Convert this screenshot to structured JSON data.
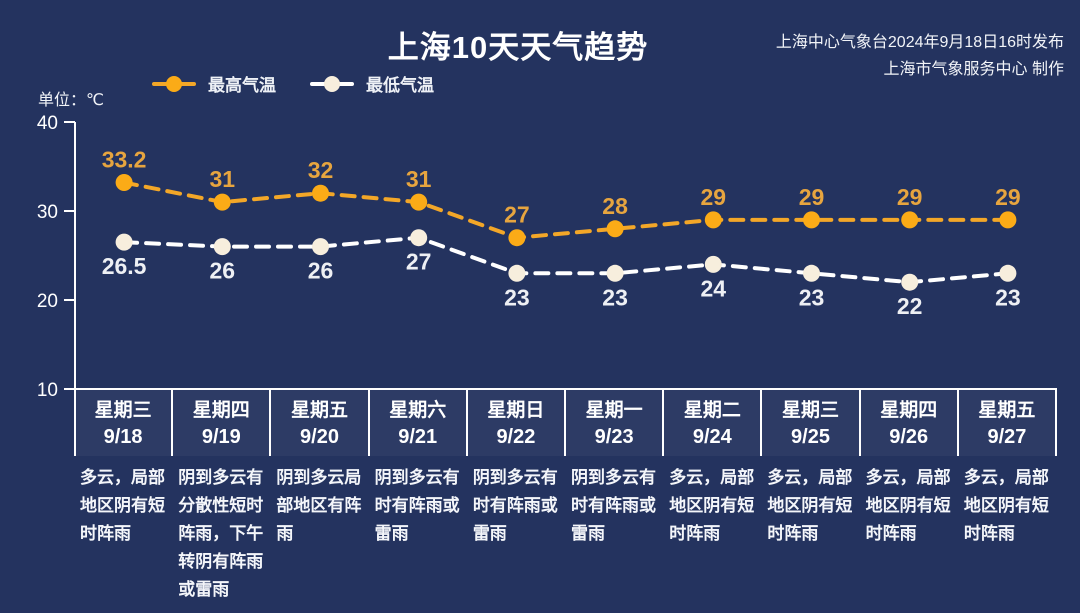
{
  "page": {
    "title": "上海10天天气趋势",
    "publisher_line1": "上海中心气象台2024年9月18日16时发布",
    "publisher_line2": "上海市气象服务中心 制作",
    "unit_label": "单位：℃",
    "colors": {
      "background": "#24335f",
      "axis": "#ffffff",
      "high_line": "#f3a728",
      "high_marker": "#fbab17",
      "high_label": "#e7a53f",
      "low_line": "#ffffff",
      "low_marker": "#f7eedd",
      "low_label": "#eef0f4"
    }
  },
  "legend": {
    "items": [
      {
        "label": "最高气温",
        "line_color": "#f3a728",
        "dot_color": "#fbab17"
      },
      {
        "label": "最低气温",
        "line_color": "#ffffff",
        "dot_color": "#f7eedd"
      }
    ]
  },
  "chart_data": {
    "type": "line",
    "title": "上海10天天气趋势",
    "ylabel": "℃",
    "ylim": [
      10,
      40
    ],
    "yticks": [
      40,
      30,
      20,
      10
    ],
    "grid": false,
    "legend_position": "top",
    "line_style": "dashed",
    "categories": [
      "9/18",
      "9/19",
      "9/20",
      "9/21",
      "9/22",
      "9/23",
      "9/24",
      "9/25",
      "9/26",
      "9/27"
    ],
    "weekdays": [
      "星期三",
      "星期四",
      "星期五",
      "星期六",
      "星期日",
      "星期一",
      "星期二",
      "星期三",
      "星期四",
      "星期五"
    ],
    "series": [
      {
        "name": "最高气温",
        "values": [
          33.2,
          31,
          32,
          31,
          27,
          28,
          29,
          29,
          29,
          29
        ],
        "color": "#f3a728"
      },
      {
        "name": "最低气温",
        "values": [
          26.5,
          26,
          26,
          27,
          23,
          23,
          24,
          23,
          22,
          23
        ],
        "color": "#ffffff"
      }
    ]
  },
  "days": [
    {
      "weekday": "星期三",
      "date": "9/18",
      "forecast": "多云，局部地区阴有短时阵雨"
    },
    {
      "weekday": "星期四",
      "date": "9/19",
      "forecast": "阴到多云有分散性短时阵雨，下午转阴有阵雨或雷雨"
    },
    {
      "weekday": "星期五",
      "date": "9/20",
      "forecast": "阴到多云局部地区有阵雨"
    },
    {
      "weekday": "星期六",
      "date": "9/21",
      "forecast": "阴到多云有时有阵雨或雷雨"
    },
    {
      "weekday": "星期日",
      "date": "9/22",
      "forecast": "阴到多云有时有阵雨或雷雨"
    },
    {
      "weekday": "星期一",
      "date": "9/23",
      "forecast": "阴到多云有时有阵雨或雷雨"
    },
    {
      "weekday": "星期二",
      "date": "9/24",
      "forecast": "多云，局部地区阴有短时阵雨"
    },
    {
      "weekday": "星期三",
      "date": "9/25",
      "forecast": "多云，局部地区阴有短时阵雨"
    },
    {
      "weekday": "星期四",
      "date": "9/26",
      "forecast": "多云，局部地区阴有短时阵雨"
    },
    {
      "weekday": "星期五",
      "date": "9/27",
      "forecast": "多云，局部地区阴有短时阵雨"
    }
  ]
}
